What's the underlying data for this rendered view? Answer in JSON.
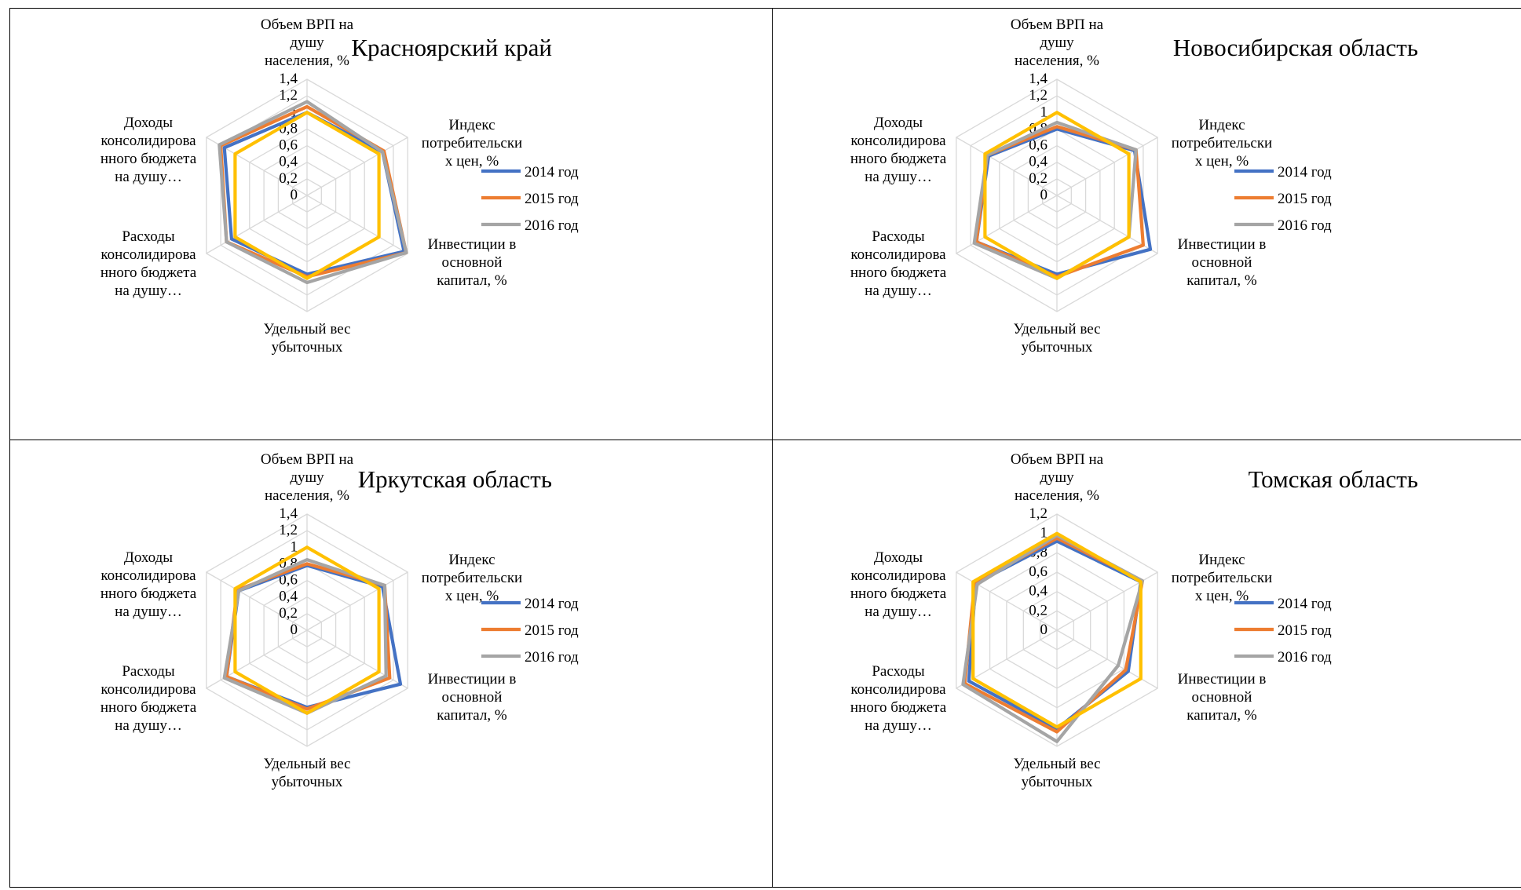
{
  "chart_data": [
    {
      "type": "radar",
      "title": "Красноярский край",
      "axes": [
        [
          "Объем ВРП на",
          "душу",
          "населения, %"
        ],
        [
          "Индекс",
          "потребительски",
          "х цен, %"
        ],
        [
          "Инвестиции в",
          "основной",
          "капитал, %"
        ],
        [
          "Удельный вес",
          "убыточных"
        ],
        [
          "Расходы",
          "консолидирова",
          "нного бюджета",
          "на душу…"
        ],
        [
          "Доходы",
          "консолидирова",
          "нного бюджета",
          "на душу…"
        ]
      ],
      "ticks": [
        "0",
        "0,2",
        "0,4",
        "0,6",
        "0,8",
        "1",
        "1,2",
        "1,4"
      ],
      "rmax": 1.4,
      "legend_position": "right",
      "series": [
        {
          "name": "2014 год",
          "color": "#4472C4",
          "values": [
            1.0,
            1.05,
            1.35,
            0.95,
            1.05,
            1.15
          ]
        },
        {
          "name": "2015 год",
          "color": "#ED7D31",
          "values": [
            1.07,
            1.07,
            1.38,
            0.98,
            1.12,
            1.2
          ]
        },
        {
          "name": "2016 год",
          "color": "#A5A5A5",
          "values": [
            1.13,
            1.05,
            1.38,
            1.05,
            1.12,
            1.22
          ]
        },
        {
          "name": "",
          "color": "#FFC000",
          "values": [
            1.0,
            1.0,
            1.0,
            1.0,
            1.0,
            1.0
          ]
        }
      ]
    },
    {
      "type": "radar",
      "title": "Новосибирская область",
      "axes": [
        [
          "Объем ВРП на",
          "душу",
          "населения, %"
        ],
        [
          "Индекс",
          "потребительски",
          "х цен, %"
        ],
        [
          "Инвестиции в",
          "основной",
          "капитал, %"
        ],
        [
          "Удельный вес",
          "убыточных"
        ],
        [
          "Расходы",
          "консолидирова",
          "нного бюджета",
          "на душу…"
        ],
        [
          "Доходы",
          "консолидирова",
          "нного бюджета",
          "на душу…"
        ]
      ],
      "ticks": [
        "0",
        "0,2",
        "0,4",
        "0,6",
        "0,8",
        "1",
        "1,2",
        "1,4"
      ],
      "rmax": 1.4,
      "legend_position": "right",
      "series": [
        {
          "name": "2014 год",
          "color": "#4472C4",
          "values": [
            0.8,
            1.08,
            1.3,
            0.95,
            1.12,
            0.95
          ]
        },
        {
          "name": "2015 год",
          "color": "#ED7D31",
          "values": [
            0.83,
            1.1,
            1.2,
            0.98,
            1.12,
            0.97
          ]
        },
        {
          "name": "2016 год",
          "color": "#A5A5A5",
          "values": [
            0.88,
            1.1,
            1.0,
            1.0,
            1.15,
            0.97
          ]
        },
        {
          "name": "",
          "color": "#FFC000",
          "values": [
            1.0,
            1.0,
            1.0,
            1.0,
            1.0,
            1.0
          ]
        }
      ]
    },
    {
      "type": "radar",
      "title": "Иркутская область",
      "axes": [
        [
          "Объем ВРП на",
          "душу",
          "населения, %"
        ],
        [
          "Индекс",
          "потребительски",
          "х цен, %"
        ],
        [
          "Инвестиции в",
          "основной",
          "капитал, %"
        ],
        [
          "Удельный вес",
          "убыточных"
        ],
        [
          "Расходы",
          "консолидирова",
          "нного бюджета",
          "на душу…"
        ],
        [
          "Доходы",
          "консолидирова",
          "нного бюджета",
          "на душу…"
        ]
      ],
      "ticks": [
        "0",
        "0,2",
        "0,4",
        "0,6",
        "0,8",
        "1",
        "1,2",
        "1,4"
      ],
      "rmax": 1.4,
      "legend_position": "right",
      "series": [
        {
          "name": "2014 год",
          "color": "#4472C4",
          "values": [
            0.78,
            1.05,
            1.3,
            0.93,
            1.12,
            0.95
          ]
        },
        {
          "name": "2015 год",
          "color": "#ED7D31",
          "values": [
            0.8,
            1.08,
            1.15,
            0.95,
            1.12,
            0.97
          ]
        },
        {
          "name": "2016 год",
          "color": "#A5A5A5",
          "values": [
            0.85,
            1.08,
            1.1,
            1.0,
            1.15,
            0.95
          ]
        },
        {
          "name": "",
          "color": "#FFC000",
          "values": [
            1.0,
            1.0,
            1.0,
            1.0,
            1.0,
            1.0
          ]
        }
      ]
    },
    {
      "type": "radar",
      "title": "Томская область",
      "axes": [
        [
          "Объем ВРП на",
          "душу",
          "населения, %"
        ],
        [
          "Индекс",
          "потребительски",
          "х цен, %"
        ],
        [
          "Инвестиции в",
          "основной",
          "капитал, %"
        ],
        [
          "Удельный вес",
          "убыточных"
        ],
        [
          "Расходы",
          "консолидирова",
          "нного бюджета",
          "на душу…"
        ],
        [
          "Доходы",
          "консолидирова",
          "нного бюджета",
          "на душу…"
        ]
      ],
      "ticks": [
        "0",
        "0,2",
        "0,4",
        "0,6",
        "0,8",
        "1",
        "1,2"
      ],
      "rmax": 1.2,
      "legend_position": "right",
      "series": [
        {
          "name": "2014 год",
          "color": "#4472C4",
          "values": [
            0.92,
            1.0,
            0.85,
            1.02,
            1.05,
            0.97
          ]
        },
        {
          "name": "2015 год",
          "color": "#ED7D31",
          "values": [
            0.95,
            1.02,
            0.82,
            1.05,
            1.1,
            0.98
          ]
        },
        {
          "name": "2016 год",
          "color": "#A5A5A5",
          "values": [
            0.98,
            1.02,
            0.73,
            1.15,
            1.12,
            0.95
          ]
        },
        {
          "name": "",
          "color": "#FFC000",
          "values": [
            1.0,
            1.0,
            1.0,
            1.0,
            1.0,
            1.0
          ]
        }
      ]
    }
  ]
}
